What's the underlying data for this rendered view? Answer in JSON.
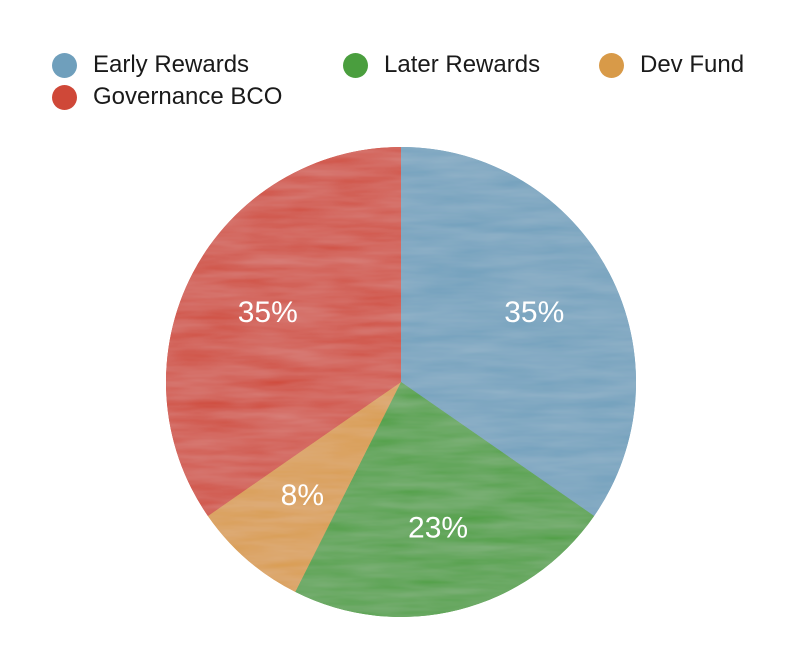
{
  "chart_data": {
    "type": "pie",
    "title": "",
    "legend_position": "top",
    "categories": [
      "Early Rewards",
      "Later Rewards",
      "Dev Fund",
      "Governance BCO"
    ],
    "values": [
      35,
      23,
      8,
      35
    ],
    "labels": [
      "35%",
      "23%",
      "8%",
      "35%"
    ],
    "colors": [
      "#6f9fbc",
      "#4a9e3e",
      "#d89a48",
      "#cf4838"
    ]
  },
  "legend": {
    "items": [
      {
        "label": "Early Rewards",
        "color": "#6f9fbc"
      },
      {
        "label": "Later Rewards",
        "color": "#4a9e3e"
      },
      {
        "label": "Dev Fund",
        "color": "#d89a48"
      },
      {
        "label": "Governance BCO",
        "color": "#cf4838"
      }
    ]
  }
}
